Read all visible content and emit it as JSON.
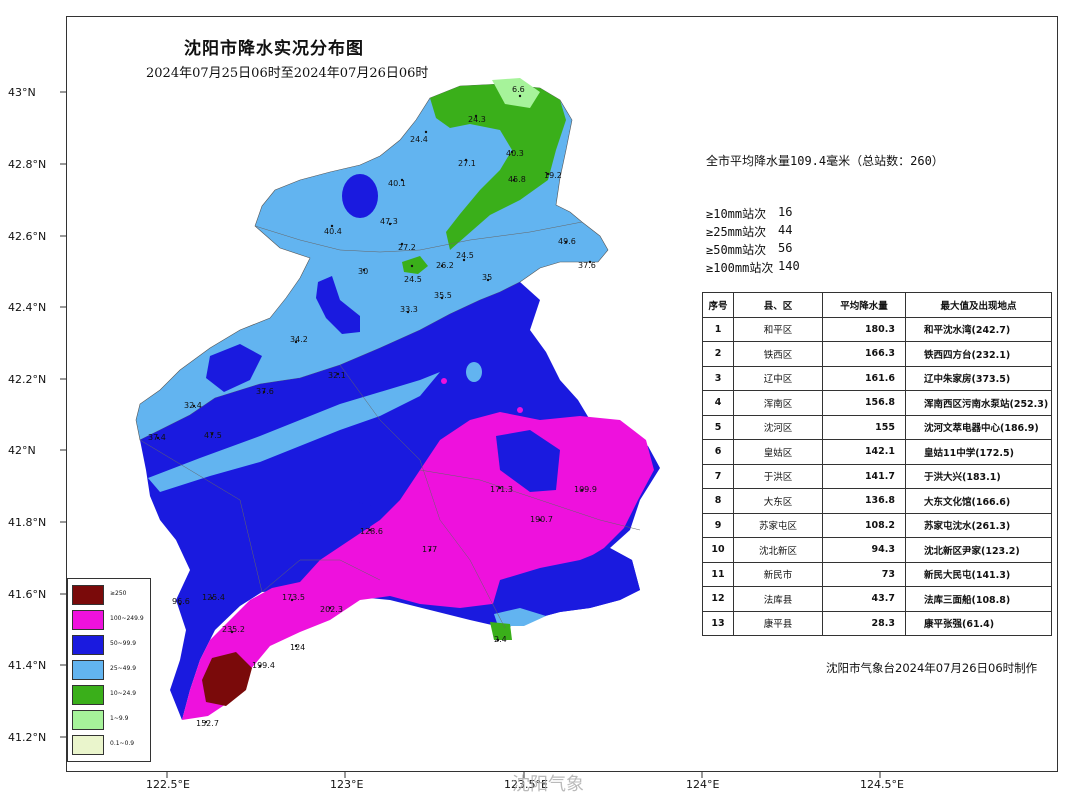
{
  "title": "沈阳市降水实况分布图",
  "subtitle": "2024年07月25日06时至2024年07月26日06时",
  "latitudes": [
    "43°N",
    "42.8°N",
    "42.6°N",
    "42.4°N",
    "42.2°N",
    "42°N",
    "41.8°N",
    "41.6°N",
    "41.4°N",
    "41.2°N"
  ],
  "longitudes": [
    "122.5°E",
    "123°E",
    "123.5°E",
    "124°E",
    "124.5°E"
  ],
  "summary": {
    "avg_text": "全市平均降水量109.4毫米（总站数：260）",
    "thresholds": [
      {
        "label": "≥10mm站次",
        "value": "16"
      },
      {
        "label": "≥25mm站次",
        "value": "44"
      },
      {
        "label": "≥50mm站次",
        "value": "56"
      },
      {
        "label": "≥100mm站次",
        "value": "140"
      }
    ]
  },
  "table": {
    "headers": [
      "序号",
      "县、区",
      "平均降水量",
      "最大值及出现地点"
    ],
    "rows": [
      {
        "no": "1",
        "district": "和平区",
        "avg": "180.3",
        "max": "和平沈水湾(242.7)"
      },
      {
        "no": "2",
        "district": "铁西区",
        "avg": "166.3",
        "max": "铁西四方台(232.1)"
      },
      {
        "no": "3",
        "district": "辽中区",
        "avg": "161.6",
        "max": "辽中朱家房(373.5)"
      },
      {
        "no": "4",
        "district": "浑南区",
        "avg": "156.8",
        "max": "浑南西区污南水泵站(252.3)"
      },
      {
        "no": "5",
        "district": "沈河区",
        "avg": "155",
        "max": "沈河文萃电器中心(186.9)"
      },
      {
        "no": "6",
        "district": "皇姑区",
        "avg": "142.1",
        "max": "皇姑11中学(172.5)"
      },
      {
        "no": "7",
        "district": "于洪区",
        "avg": "141.7",
        "max": "于洪大兴(183.1)"
      },
      {
        "no": "8",
        "district": "大东区",
        "avg": "136.8",
        "max": "大东文化馆(166.6)"
      },
      {
        "no": "9",
        "district": "苏家屯区",
        "avg": "108.2",
        "max": "苏家屯沈水(261.3)"
      },
      {
        "no": "10",
        "district": "沈北新区",
        "avg": "94.3",
        "max": "沈北新区尹家(123.2)"
      },
      {
        "no": "11",
        "district": "新民市",
        "avg": "73",
        "max": "新民大民屯(141.3)"
      },
      {
        "no": "12",
        "district": "法库县",
        "avg": "43.7",
        "max": "法库三面船(108.8)"
      },
      {
        "no": "13",
        "district": "康平县",
        "avg": "28.3",
        "max": "康平张强(61.4)"
      }
    ]
  },
  "credit": "沈阳市气象台2024年07月26日06时制作",
  "legend": [
    {
      "label": "≥250",
      "color": "#7a0a0a"
    },
    {
      "label": "100~249.9",
      "color": "#ee11dd"
    },
    {
      "label": "50~99.9",
      "color": "#1a1adf"
    },
    {
      "label": "25~49.9",
      "color": "#62b4f0"
    },
    {
      "label": "10~24.9",
      "color": "#3aaf1a"
    },
    {
      "label": "1~9.9",
      "color": "#a6f39a"
    },
    {
      "label": "0.1~0.9",
      "color": "#eaf5cc"
    }
  ],
  "stations": [
    {
      "name": "康平山东屯",
      "value": "6.6"
    },
    {
      "name": "康平北小城子",
      "value": "24.4"
    },
    {
      "name": "康平",
      "value": "24.3"
    },
    {
      "name": "康平",
      "value": "40.3"
    },
    {
      "name": "康平",
      "value": "27.1"
    },
    {
      "name": "康平",
      "value": "45.8"
    },
    {
      "name": "康平二牛所口",
      "value": "40.1"
    },
    {
      "name": "康平",
      "value": "19.2"
    },
    {
      "name": "法库",
      "value": "47.3"
    },
    {
      "name": "法库",
      "value": "40.4"
    },
    {
      "name": "法库",
      "value": "27.2"
    },
    {
      "name": "法库",
      "value": "49.6"
    },
    {
      "name": "法库",
      "value": "37.6"
    },
    {
      "name": "法库",
      "value": "30"
    },
    {
      "name": "法库",
      "value": "24.5"
    },
    {
      "name": "法库",
      "value": "26.2"
    },
    {
      "name": "法库",
      "value": "24.5"
    },
    {
      "name": "法库",
      "value": "35"
    },
    {
      "name": "法库",
      "value": "35.5"
    },
    {
      "name": "法库",
      "value": "33.3"
    },
    {
      "name": "法库",
      "value": "34.2"
    },
    {
      "name": "新民",
      "value": "32.1"
    },
    {
      "name": "新民大柳屯",
      "value": "37.6"
    },
    {
      "name": "新民周坨子",
      "value": "32.4"
    },
    {
      "name": "新民",
      "value": "37.4"
    },
    {
      "name": "新民梁山",
      "value": "47.5"
    },
    {
      "name": "辽中",
      "value": "96.6"
    },
    {
      "name": "辽中",
      "value": "125.4"
    },
    {
      "name": "辽中",
      "value": "173.5"
    },
    {
      "name": "辽中",
      "value": "235.2"
    },
    {
      "name": "辽中",
      "value": "199.4"
    },
    {
      "name": "辽中",
      "value": "152.7"
    },
    {
      "name": "辽中",
      "value": "124"
    },
    {
      "name": "辽中",
      "value": "202.3"
    },
    {
      "name": "苏家屯",
      "value": "177"
    },
    {
      "name": "苏家屯",
      "value": "190.7"
    },
    {
      "name": "于洪",
      "value": "128.6"
    },
    {
      "name": "浑南",
      "value": "171.3"
    },
    {
      "name": "浑南",
      "value": "109.9"
    },
    {
      "name": "浑南",
      "value": "2.4"
    }
  ],
  "watermark": "沈阳气象"
}
